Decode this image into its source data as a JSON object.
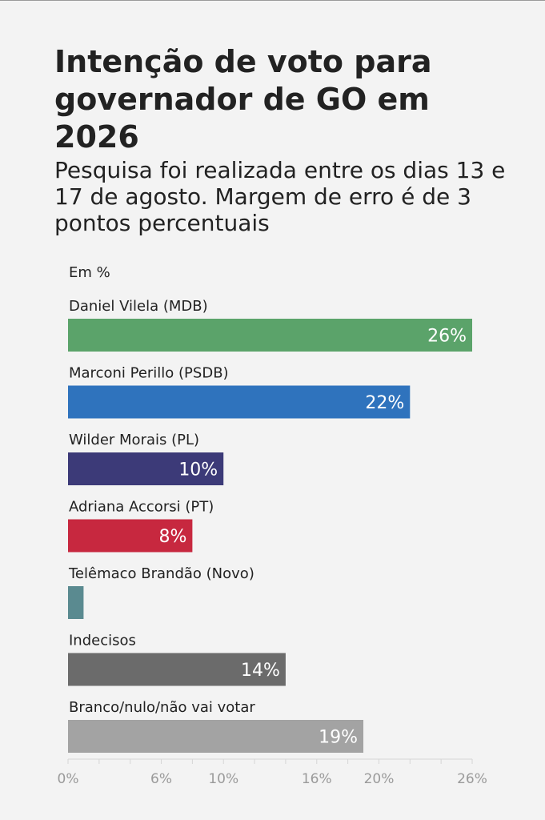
{
  "chart_data": {
    "type": "bar",
    "orientation": "horizontal",
    "title": "Intenção de voto para governador de GO em 2026",
    "subtitle": "Pesquisa foi realizada entre os dias 13 e 17 de agosto. Margem de erro é de 3 pontos percentuais",
    "unit_label": "Em %",
    "categories": [
      "Daniel Vilela (MDB)",
      "Marconi Perillo (PSDB)",
      "Wilder Morais (PL)",
      "Adriana Accorsi (PT)",
      "Telêmaco Brandão (Novo)",
      "Indecisos",
      "Branco/nulo/não vai votar"
    ],
    "values": [
      26,
      22,
      10,
      8,
      1,
      14,
      19
    ],
    "value_labels": [
      "26%",
      "22%",
      "10%",
      "8%",
      "",
      "14%",
      "19%"
    ],
    "colors": [
      "#5ba36a",
      "#2f73bd",
      "#3c3a78",
      "#c7283f",
      "#5a8a90",
      "#6b6b6b",
      "#a3a3a3"
    ],
    "xlim": [
      0,
      26
    ],
    "xticks": [
      0,
      6,
      10,
      16,
      20,
      26
    ],
    "xtick_labels": [
      "0%",
      "6%",
      "10%",
      "16%",
      "20%",
      "26%"
    ],
    "grid": false
  }
}
